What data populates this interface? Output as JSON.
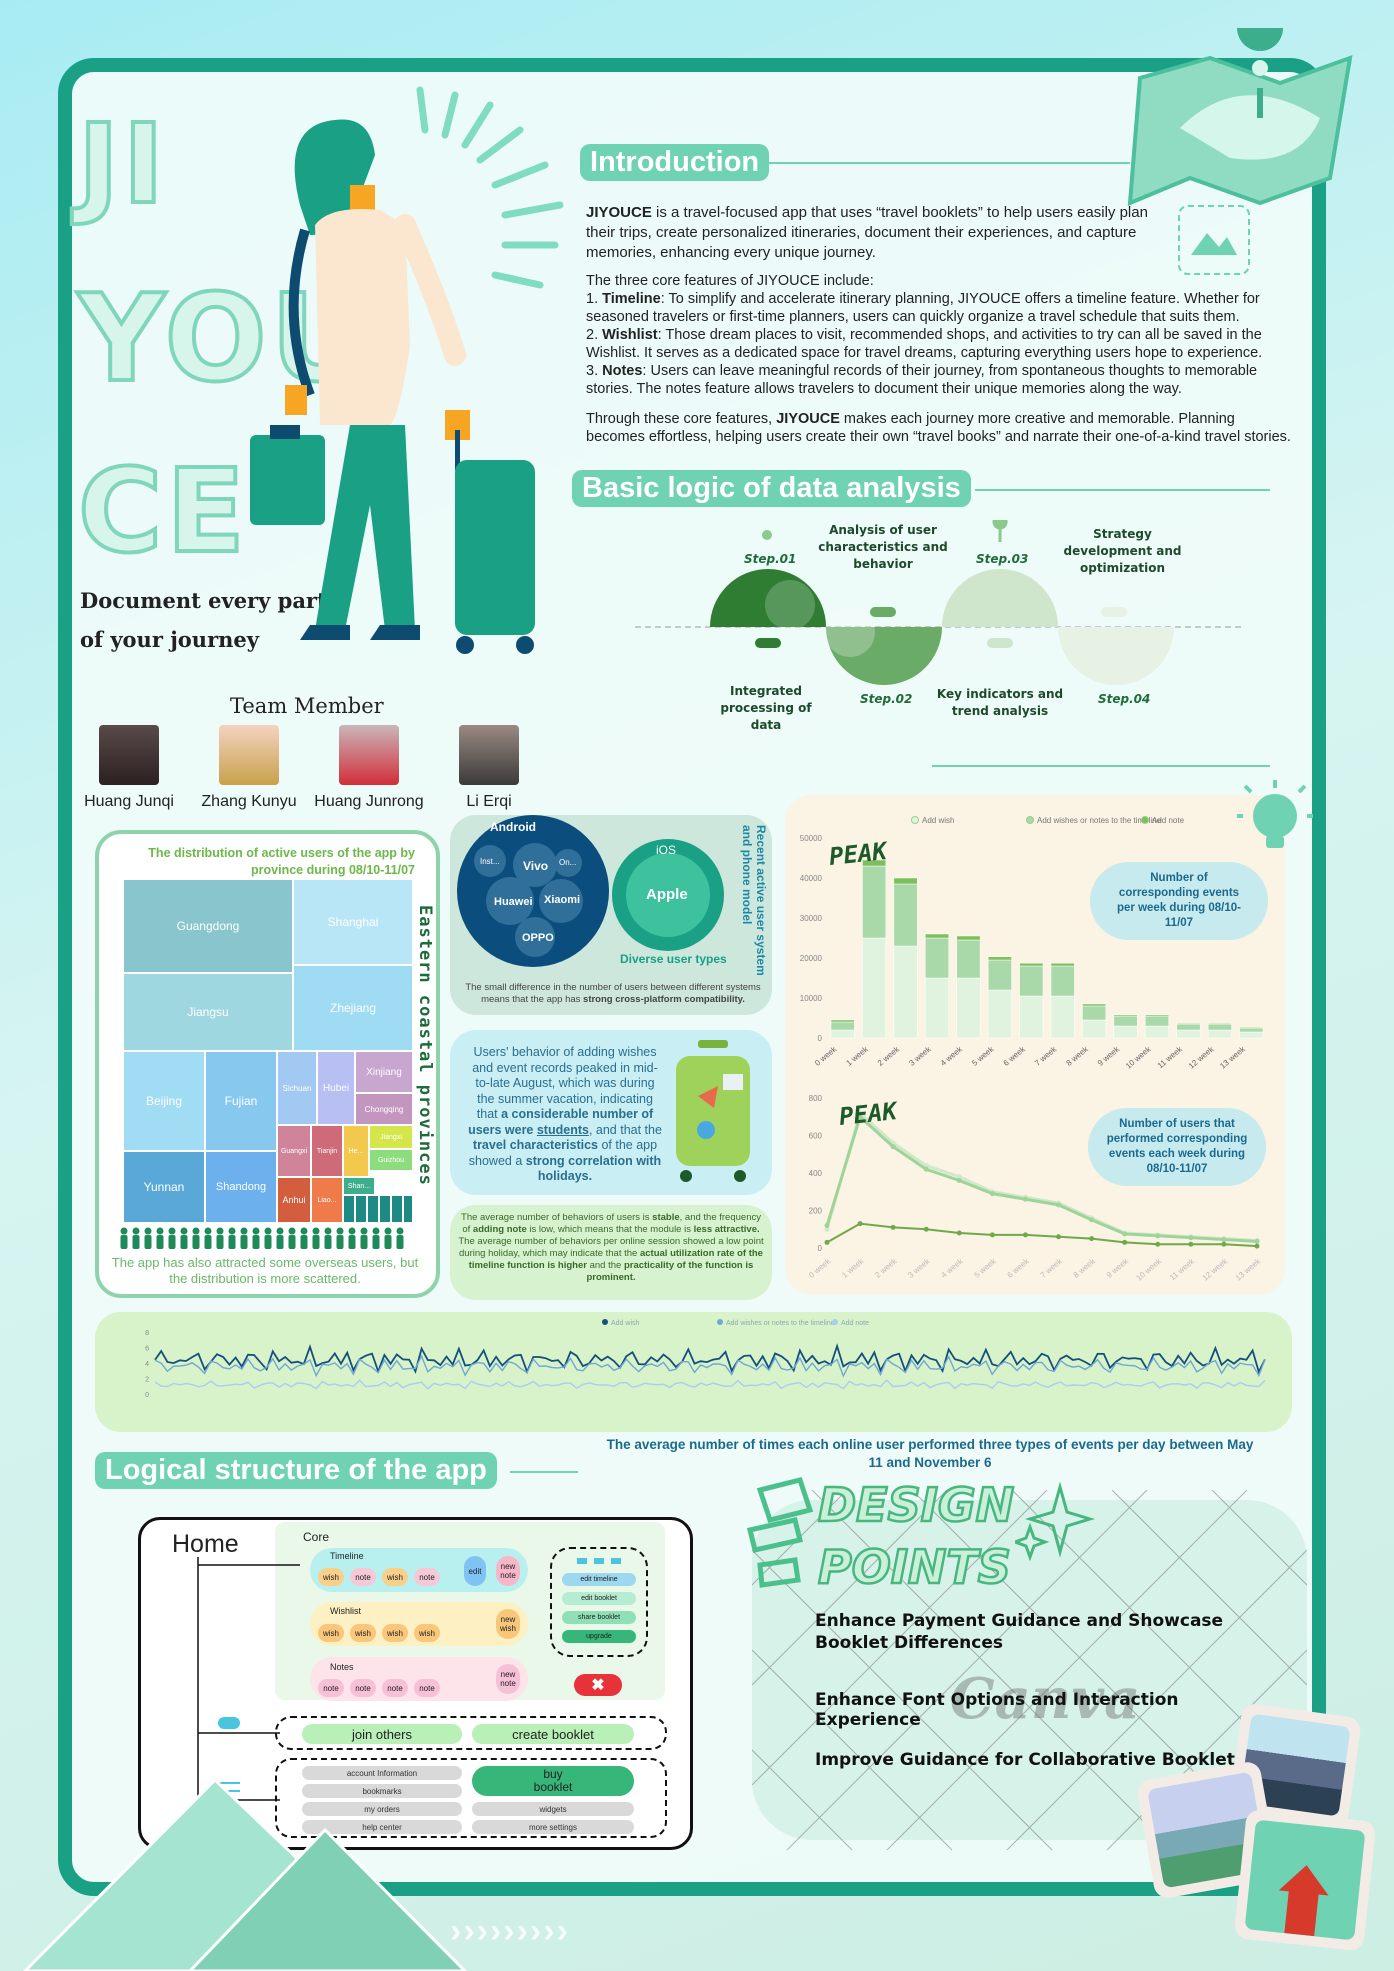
{
  "brand": {
    "line1": "JI",
    "line2": "YOU",
    "line3": "CE",
    "tagline_1": "Document every part",
    "tagline_2": "of your journey"
  },
  "team": {
    "title": "Team Member",
    "members": [
      "Huang Junqi",
      "Zhang Kunyu",
      "Huang Junrong",
      "Li Erqi"
    ]
  },
  "intro": {
    "title": "Introduction",
    "brand": "JIYOUCE",
    "p1": " is a travel-focused app that uses “travel booklets” to help users easily plan their trips, create personalized itineraries, document their experiences, and capture memories, enhancing every unique journey.",
    "p2": "The three core features of JIYOUCE include:",
    "f1_label": "Timeline",
    "f1": ": To simplify and accelerate itinerary planning, JIYOUCE offers a timeline feature. Whether for seasoned travelers or first-time planners, users can quickly organize a travel schedule that suits them.",
    "f2_label": "Wishlist",
    "f2": ": Those dream places to visit, recommended shops, and activities to try can all be saved in the Wishlist. It serves as a dedicated space for travel dreams, capturing everything users hope to experience.",
    "f3_label": "Notes",
    "f3": ": Users can leave meaningful records of their journey, from spontaneous thoughts to memorable stories. The notes feature allows travelers to document their unique memories along the way.",
    "p3a": "Through these core features, ",
    "p3b": " makes each journey more creative and memorable. Planning becomes effortless, helping users create their own “travel books” and narrate their one-of-a-kind travel stories."
  },
  "logic": {
    "title": "Basic logic of data analysis",
    "steps": [
      {
        "step": "Step.01",
        "desc": "Integrated processing of data"
      },
      {
        "step": "Step.02",
        "desc": "Analysis of user characteristics and behavior"
      },
      {
        "step": "Step.03",
        "desc": "Key indicators and trend analysis"
      },
      {
        "step": "Step.04",
        "desc": "Strategy development and optimization"
      }
    ]
  },
  "treemap": {
    "title": "The distribution of active users of the app by province during 08/10-11/07",
    "side_label": "Eastern coastal provinces",
    "cells": [
      "Guangdong",
      "Shanghai",
      "Jiangsu",
      "Zhejiang",
      "Beijing",
      "Fujian",
      "Sichuan",
      "Hubei",
      "Xinjiang",
      "Chongqing",
      "Yunnan",
      "Shandong",
      "Guangxi",
      "Tianjin",
      "He...",
      "Jiangxi",
      "Guizhou",
      "Anhui",
      "Liao...",
      "Shan..."
    ],
    "note": "The app has also attracted some overseas users, but the distribution is more scattered."
  },
  "devices": {
    "android": "Android",
    "ios": "iOS",
    "apple": "Apple",
    "brands": [
      "Inst...",
      "Vivo",
      "On...",
      "Huawei",
      "Xiaomi",
      "OPPO"
    ],
    "diverse": "Diverse user types",
    "side": "Recent active user system and phone model",
    "note_a": "The small difference in the number of users between different systems means that the app has ",
    "note_b": "strong cross-platform compatibility."
  },
  "behavior": {
    "t1": "Users' behavior of adding wishes and event records peaked in mid-to-late August, which was during the summer vacation, indicating that ",
    "t2": "a considerable number of users were ",
    "t3": "students",
    "t4": ", and that the ",
    "t5": "travel characteristics",
    "t6": " of the app showed a ",
    "t7": "strong correlation with holidays."
  },
  "avg_note": {
    "a": "The average number of behaviors of users is ",
    "b": "stable",
    "c": ", and the frequency of ",
    "d": "adding note",
    "e": " is low, which means that the module is ",
    "f": "less attractive.",
    "g": "The average number of behaviors per online session showed a low point during holiday, which may indicate that the ",
    "h": "actual utilization rate of the timeline function is higher",
    "i": " and the ",
    "j": "practicality of the function is prominent."
  },
  "chart_data": [
    {
      "type": "bar",
      "title": "Number of corresponding events per week during 08/10-11/07",
      "annotation": "PEAK",
      "categories": [
        "0 week",
        "1 week",
        "2 week",
        "3 week",
        "4 week",
        "5 week",
        "6 week",
        "7 week",
        "8 week",
        "9 week",
        "10 week",
        "11 week",
        "12 week",
        "13 week"
      ],
      "series": [
        {
          "name": "Add wish",
          "values": [
            2000,
            25000,
            23000,
            15000,
            15000,
            12000,
            10500,
            10500,
            4500,
            3000,
            3000,
            2000,
            2000,
            1500
          ]
        },
        {
          "name": "Add wishes or notes to the timeline",
          "values": [
            2000,
            18000,
            15500,
            10000,
            9500,
            7500,
            7500,
            7500,
            3500,
            2500,
            2500,
            1500,
            1500,
            1000
          ]
        },
        {
          "name": "Add note",
          "values": [
            500,
            1500,
            1500,
            1000,
            1000,
            800,
            700,
            700,
            500,
            300,
            300,
            200,
            200,
            200
          ]
        }
      ],
      "ylim": [
        0,
        50000
      ],
      "yticks": [
        0,
        10000,
        20000,
        30000,
        40000,
        50000
      ]
    },
    {
      "type": "line",
      "title": "Number of users that performed corresponding events each week during 08/10-11/07",
      "annotation": "PEAK",
      "categories": [
        "0 week",
        "1 week",
        "2 week",
        "3 week",
        "4 week",
        "5 week",
        "6 week",
        "7 week",
        "8 week",
        "9 week",
        "10 week",
        "11 week",
        "12 week",
        "13 week"
      ],
      "series": [
        {
          "name": "Add wish",
          "values": [
            100,
            720,
            560,
            440,
            380,
            300,
            270,
            240,
            160,
            80,
            70,
            60,
            50,
            40
          ]
        },
        {
          "name": "Add wishes or notes to the timeline",
          "values": [
            120,
            700,
            540,
            420,
            360,
            290,
            260,
            230,
            150,
            75,
            65,
            55,
            45,
            35
          ]
        },
        {
          "name": "Add note",
          "values": [
            30,
            130,
            110,
            100,
            80,
            70,
            70,
            60,
            50,
            30,
            20,
            20,
            20,
            10
          ]
        }
      ],
      "ylim": [
        0,
        800
      ],
      "yticks": [
        0,
        200,
        400,
        600,
        800
      ]
    },
    {
      "type": "line",
      "title": "The average number of times each online user performed three types of events per day between May 11 and November 6",
      "legend": [
        "Add wish",
        "Add wishes or notes to the timeline",
        "Add note"
      ],
      "ylim": [
        0,
        8
      ],
      "yticks": [
        0,
        2,
        4,
        6,
        8
      ]
    }
  ],
  "structure": {
    "title": "Logical structure of the app",
    "home": "Home",
    "core": "Core",
    "timeline": "Timeline",
    "wishlist": "Wishlist",
    "notes": "Notes",
    "wish": "wish",
    "note": "note",
    "edit": "edit",
    "new_note": "new note",
    "new_wish": "new wish",
    "side_buttons": [
      "edit timeline",
      "edit booklet",
      "share booklet",
      "upgrade"
    ],
    "join": "join others",
    "create": "create booklet",
    "buy": "buy booklet",
    "menu_left": [
      "account Information",
      "bookmarks",
      "my orders",
      "help center"
    ],
    "menu_right": [
      "widgets",
      "more settings"
    ]
  },
  "design": {
    "title1": "DESIGN",
    "title2": "POINTS",
    "watermark": "Canva",
    "points": [
      "Enhance Payment Guidance and Showcase Booklet Differences",
      "Enhance Font Options and Interaction Experience",
      "Improve Guidance for Collaborative Booklets"
    ]
  },
  "colors": {
    "primary": "#1aa185",
    "accent": "#6fd2b3",
    "dark": "#1d6b3a"
  }
}
